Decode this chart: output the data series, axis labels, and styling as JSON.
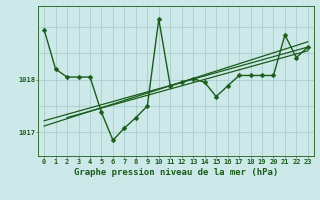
{
  "title": "Graphe pression niveau de la mer (hPa)",
  "background_color": "#cce8e8",
  "plot_bg_color": "#cce8e8",
  "line_color": "#1a5c1a",
  "grid_color": "#9bbfbf",
  "text_color": "#1a5c1a",
  "xlim": [
    -0.5,
    23.5
  ],
  "ylim": [
    1016.55,
    1019.4
  ],
  "x": [
    0,
    1,
    2,
    3,
    4,
    5,
    6,
    7,
    8,
    9,
    10,
    11,
    12,
    13,
    14,
    15,
    16,
    17,
    18,
    19,
    20,
    21,
    22,
    23
  ],
  "y_main": [
    1018.95,
    1018.2,
    1018.05,
    1018.05,
    1018.05,
    1017.38,
    1016.85,
    1017.08,
    1017.28,
    1017.5,
    1019.15,
    1017.88,
    1017.95,
    1018.02,
    1017.95,
    1017.68,
    1017.88,
    1018.08,
    1018.08,
    1018.08,
    1018.08,
    1018.85,
    1018.42,
    1018.62
  ],
  "trend_lines": [
    [
      [
        0,
        1017.12
      ],
      [
        23,
        1018.72
      ]
    ],
    [
      [
        0,
        1017.22
      ],
      [
        23,
        1018.62
      ]
    ],
    [
      [
        2,
        1017.28
      ],
      [
        23,
        1018.55
      ]
    ]
  ],
  "yticks": [
    1017.0,
    1018.0
  ],
  "ytick_labels": [
    "1017",
    "1018"
  ],
  "markersize": 2.5,
  "linewidth": 1.0,
  "trend_linewidth": 0.9,
  "tick_fontsize": 5.0,
  "label_fontsize": 6.5
}
